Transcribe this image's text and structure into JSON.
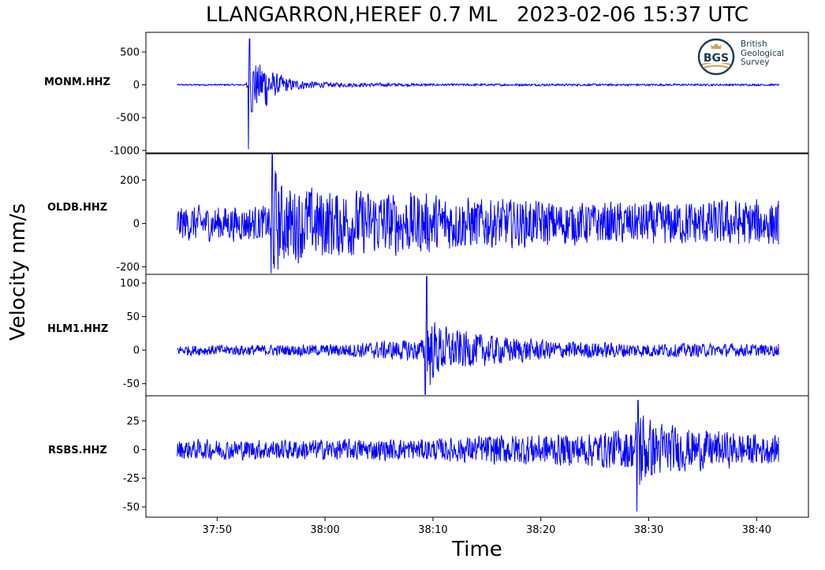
{
  "title": "LLANGARRON,HEREF 0.7 ML   2023-02-06 15:37 UTC",
  "ylabel": "Velocity nm/s",
  "xlabel": "Time",
  "logo": {
    "mark": "BGS",
    "line1": "British",
    "line2": "Geological",
    "line3": "Survey"
  },
  "colors": {
    "trace": "#0000ff",
    "frame": "#000000"
  },
  "chart_data": {
    "type": "line",
    "x_ticks": [
      "37:50",
      "38:00",
      "38:10",
      "38:20",
      "38:30",
      "38:40"
    ],
    "x_tick_seconds": [
      50,
      60,
      70,
      80,
      90,
      100
    ],
    "x_range_seconds": [
      43.4,
      104.8
    ],
    "trace_span_seconds": [
      46.3,
      106.3
    ],
    "panels": [
      {
        "name": "MONM.HHZ",
        "ylim": [
          -1050,
          800
        ],
        "yticks": [
          500,
          0,
          -500,
          -1000
        ],
        "onset_seconds": 52.9,
        "peak_min": -980,
        "peak_max": 700,
        "noise_amplitude": 12,
        "envelope": [
          [
            46.3,
            12
          ],
          [
            52.7,
            12
          ],
          [
            53.0,
            600
          ],
          [
            53.8,
            320
          ],
          [
            54.4,
            450
          ],
          [
            55.2,
            200
          ],
          [
            57,
            90
          ],
          [
            60,
            40
          ],
          [
            70,
            18
          ],
          [
            106.3,
            14
          ]
        ]
      },
      {
        "name": "OLDB.HHZ",
        "ylim": [
          -235,
          325
        ],
        "yticks": [
          200,
          0,
          -200
        ],
        "onset_seconds": 55.0,
        "peak_min": -230,
        "peak_max": 320,
        "noise_amplitude": 80,
        "envelope": [
          [
            46.3,
            85
          ],
          [
            54.8,
            85
          ],
          [
            55.1,
            300
          ],
          [
            56,
            190
          ],
          [
            60,
            170
          ],
          [
            68,
            150
          ],
          [
            75,
            120
          ],
          [
            85,
            100
          ],
          [
            95,
            110
          ],
          [
            100,
            115
          ],
          [
            106.3,
            90
          ]
        ]
      },
      {
        "name": "HLM1.HHZ",
        "ylim": [
          -68,
          113
        ],
        "yticks": [
          100,
          50,
          0,
          -50
        ],
        "onset_seconds": 69.3,
        "peak_min": -66,
        "peak_max": 110,
        "noise_amplitude": 8,
        "envelope": [
          [
            46.3,
            8
          ],
          [
            60,
            9
          ],
          [
            66,
            15
          ],
          [
            69.2,
            18
          ],
          [
            69.4,
            85
          ],
          [
            70,
            45
          ],
          [
            72,
            32
          ],
          [
            76,
            22
          ],
          [
            82,
            14
          ],
          [
            90,
            11
          ],
          [
            106.3,
            9
          ]
        ]
      },
      {
        "name": "RSBS.HHZ",
        "ylim": [
          -59,
          47
        ],
        "yticks": [
          25,
          0,
          -25,
          -50
        ],
        "onset_seconds": 88.9,
        "peak_min": -54,
        "peak_max": 43,
        "noise_amplitude": 9,
        "envelope": [
          [
            46.3,
            9
          ],
          [
            70,
            10
          ],
          [
            76,
            14
          ],
          [
            84,
            15
          ],
          [
            88.7,
            20
          ],
          [
            89.0,
            45
          ],
          [
            90,
            28
          ],
          [
            93,
            20
          ],
          [
            100,
            14
          ],
          [
            106.3,
            10
          ]
        ]
      }
    ]
  }
}
